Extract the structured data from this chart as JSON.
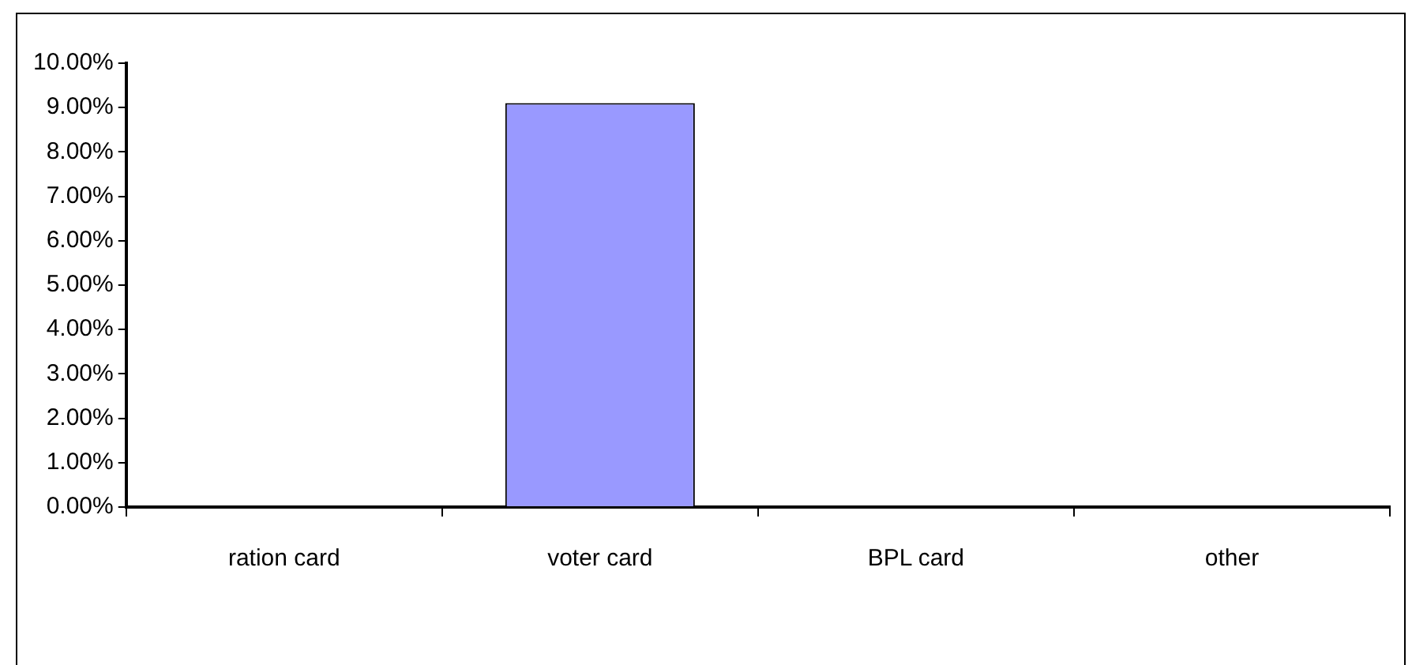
{
  "chart_data": {
    "type": "bar",
    "categories": [
      "ration card",
      "voter card",
      "BPL card",
      "other"
    ],
    "values": [
      0,
      9.1,
      0,
      0
    ],
    "color": "#9999ff",
    "ylim": [
      0,
      10
    ],
    "yticks": [
      {
        "value": 0,
        "label": "0.00%"
      },
      {
        "value": 1,
        "label": "1.00%"
      },
      {
        "value": 2,
        "label": "2.00%"
      },
      {
        "value": 3,
        "label": "3.00%"
      },
      {
        "value": 4,
        "label": "4.00%"
      },
      {
        "value": 5,
        "label": "5.00%"
      },
      {
        "value": 6,
        "label": "6.00%"
      },
      {
        "value": 7,
        "label": "7.00%"
      },
      {
        "value": 8,
        "label": "8.00%"
      },
      {
        "value": 9,
        "label": "9.00%"
      },
      {
        "value": 10,
        "label": "10.00%"
      }
    ],
    "legend": false
  }
}
